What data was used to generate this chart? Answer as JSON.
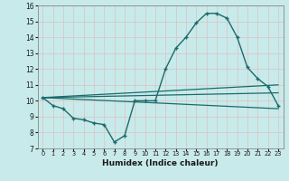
{
  "xlabel": "Humidex (Indice chaleur)",
  "bg_color": "#c8eaea",
  "grid_color": "#d4d4d4",
  "line_color": "#1a6b6b",
  "xlim": [
    -0.5,
    23.5
  ],
  "ylim": [
    7,
    16
  ],
  "yticks": [
    7,
    8,
    9,
    10,
    11,
    12,
    13,
    14,
    15,
    16
  ],
  "xticks": [
    0,
    1,
    2,
    3,
    4,
    5,
    6,
    7,
    8,
    9,
    10,
    11,
    12,
    13,
    14,
    15,
    16,
    17,
    18,
    19,
    20,
    21,
    22,
    23
  ],
  "series": [
    {
      "x": [
        0,
        1,
        2,
        3,
        4,
        5,
        6,
        7,
        8,
        9,
        10,
        11,
        12,
        13,
        14,
        15,
        16,
        17,
        18,
        19,
        20,
        21,
        22,
        23
      ],
      "y": [
        10.2,
        9.7,
        9.5,
        8.9,
        8.8,
        8.6,
        8.5,
        7.4,
        7.8,
        10.0,
        10.0,
        10.0,
        12.0,
        13.3,
        14.0,
        14.9,
        15.5,
        15.5,
        15.2,
        14.0,
        12.1,
        11.4,
        10.9,
        9.7
      ],
      "marker": "+",
      "markersize": 3.5,
      "linewidth": 1.0
    },
    {
      "x": [
        0,
        23
      ],
      "y": [
        10.2,
        10.5
      ],
      "marker": "",
      "markersize": 0,
      "linewidth": 0.9
    },
    {
      "x": [
        0,
        23
      ],
      "y": [
        10.2,
        11.0
      ],
      "marker": "",
      "markersize": 0,
      "linewidth": 0.9
    },
    {
      "x": [
        0,
        23
      ],
      "y": [
        10.2,
        9.5
      ],
      "marker": "",
      "markersize": 0,
      "linewidth": 0.9
    }
  ]
}
